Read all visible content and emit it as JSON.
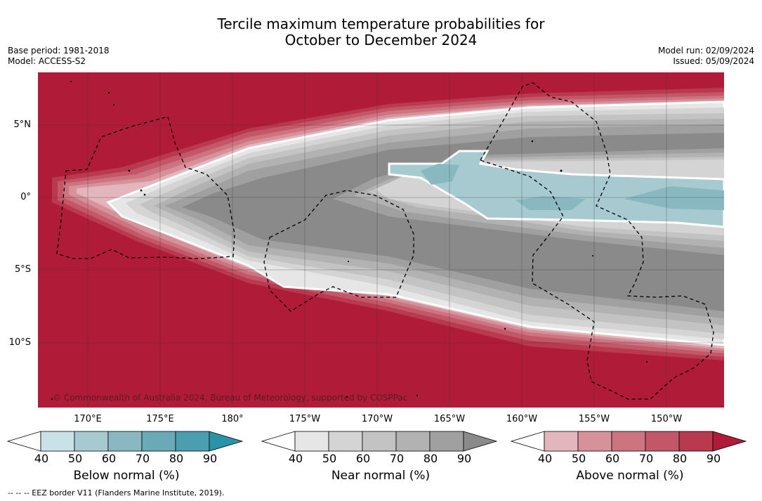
{
  "title": {
    "line1": "Tercile maximum temperature probabilities for",
    "line2": "October to December 2024"
  },
  "meta": {
    "base_period": "Base period: 1981-2018",
    "model": "Model: ACCESS-S2",
    "model_run": "Model run: 02/09/2024",
    "issued": "Issued: 05/09/2024"
  },
  "axes": {
    "lat_labels": [
      "5°N",
      "0°",
      "5°S",
      "10°S"
    ],
    "lon_labels": [
      "170°E",
      "175°E",
      "180°",
      "175°W",
      "170°W",
      "165°W",
      "160°W",
      "155°W",
      "150°W"
    ]
  },
  "copyright": "© Commonwealth of Australia 2024, Bureau of Meteorology, supported by COSPPac",
  "colorbars": [
    {
      "title": "Below normal (%)",
      "ticks": [
        "40",
        "50",
        "60",
        "70",
        "80",
        "90"
      ],
      "colors": [
        "#ffffff",
        "#c9e2e8",
        "#a7c9d0",
        "#89b8c1",
        "#6aa9b6",
        "#4a9eb0",
        "#2a93a8"
      ]
    },
    {
      "title": "Near normal (%)",
      "ticks": [
        "40",
        "50",
        "60",
        "70",
        "80",
        "90"
      ],
      "colors": [
        "#ffffff",
        "#e6e6e6",
        "#d4d4d4",
        "#c3c3c3",
        "#b2b2b2",
        "#a0a0a0",
        "#8a8a8a"
      ]
    },
    {
      "title": "Above normal (%)",
      "ticks": [
        "40",
        "50",
        "60",
        "70",
        "80",
        "90"
      ],
      "colors": [
        "#ffffff",
        "#e2b6bc",
        "#d69199",
        "#cc7480",
        "#c35767",
        "#b93a4e",
        "#b01c38"
      ]
    }
  ],
  "footnote": "--  --  -- EEZ border V11 (Flanders Marine Institute, 2019).",
  "palette": {
    "above_90": "#b01c38",
    "above_80": "#b93a4e",
    "above_70": "#c35767",
    "above_60": "#cc7480",
    "above_50": "#d69199",
    "above_40": "#e2b6bc",
    "near_40": "#e6e6e6",
    "near_50": "#d4d4d4",
    "near_60": "#c3c3c3",
    "near_70": "#b2b2b2",
    "near_80": "#a0a0a0",
    "near_90": "#8a8a8a",
    "below_50": "#a7c9d0",
    "below_60": "#89b8c1"
  }
}
